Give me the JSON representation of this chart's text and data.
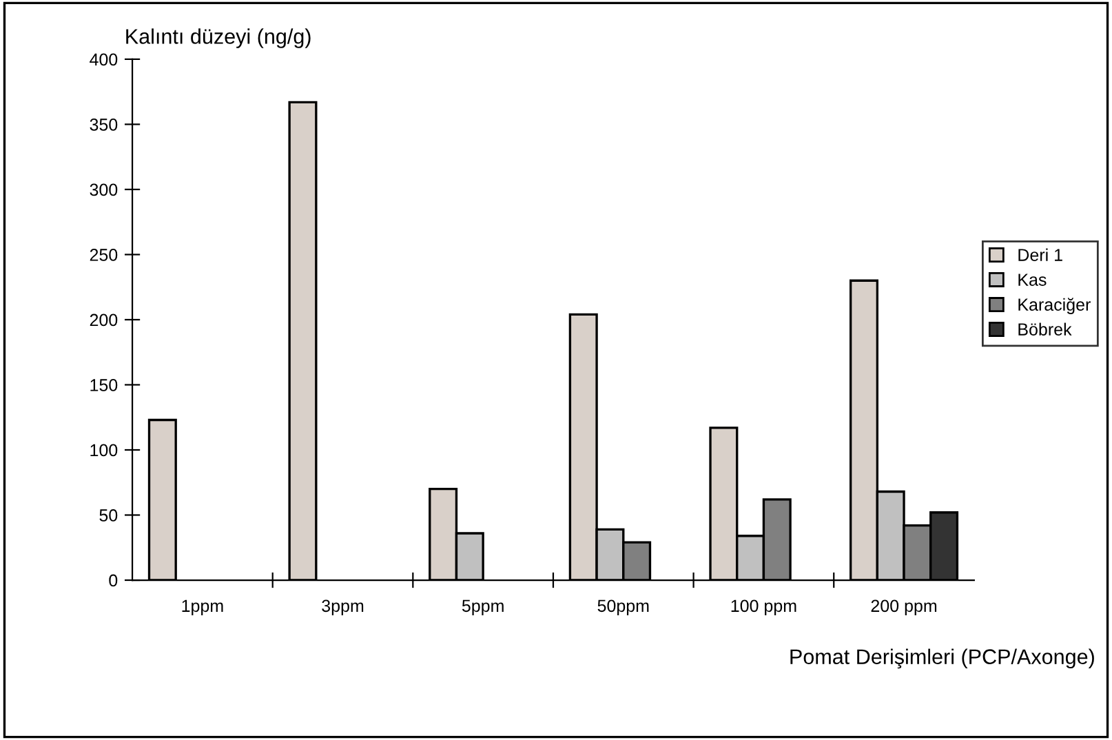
{
  "chart_data": {
    "type": "bar",
    "xlabel": "Pomat Derişimleri (PCP/Axonge)",
    "ylabel": "Kalıntı düzeyi (ng/g)",
    "categories": [
      "1ppm",
      "3ppm",
      "5ppm",
      "50ppm",
      "100 ppm",
      "200 ppm"
    ],
    "series": [
      {
        "name": "Deri 1",
        "color": "#d9d0c9",
        "values": [
          123,
          367,
          70,
          204,
          117,
          230
        ]
      },
      {
        "name": "Kas",
        "color": "#c0c0c0",
        "values": [
          null,
          null,
          36,
          39,
          34,
          68
        ]
      },
      {
        "name": "Karaciğer",
        "color": "#808080",
        "values": [
          null,
          null,
          null,
          29,
          62,
          42
        ]
      },
      {
        "name": "Böbrek",
        "color": "#333333",
        "values": [
          null,
          null,
          null,
          null,
          null,
          52
        ]
      }
    ],
    "ylim": [
      0,
      400
    ],
    "yticks": [
      0,
      50,
      100,
      150,
      200,
      250,
      300,
      350,
      400
    ],
    "grid": false,
    "legend": "right"
  }
}
